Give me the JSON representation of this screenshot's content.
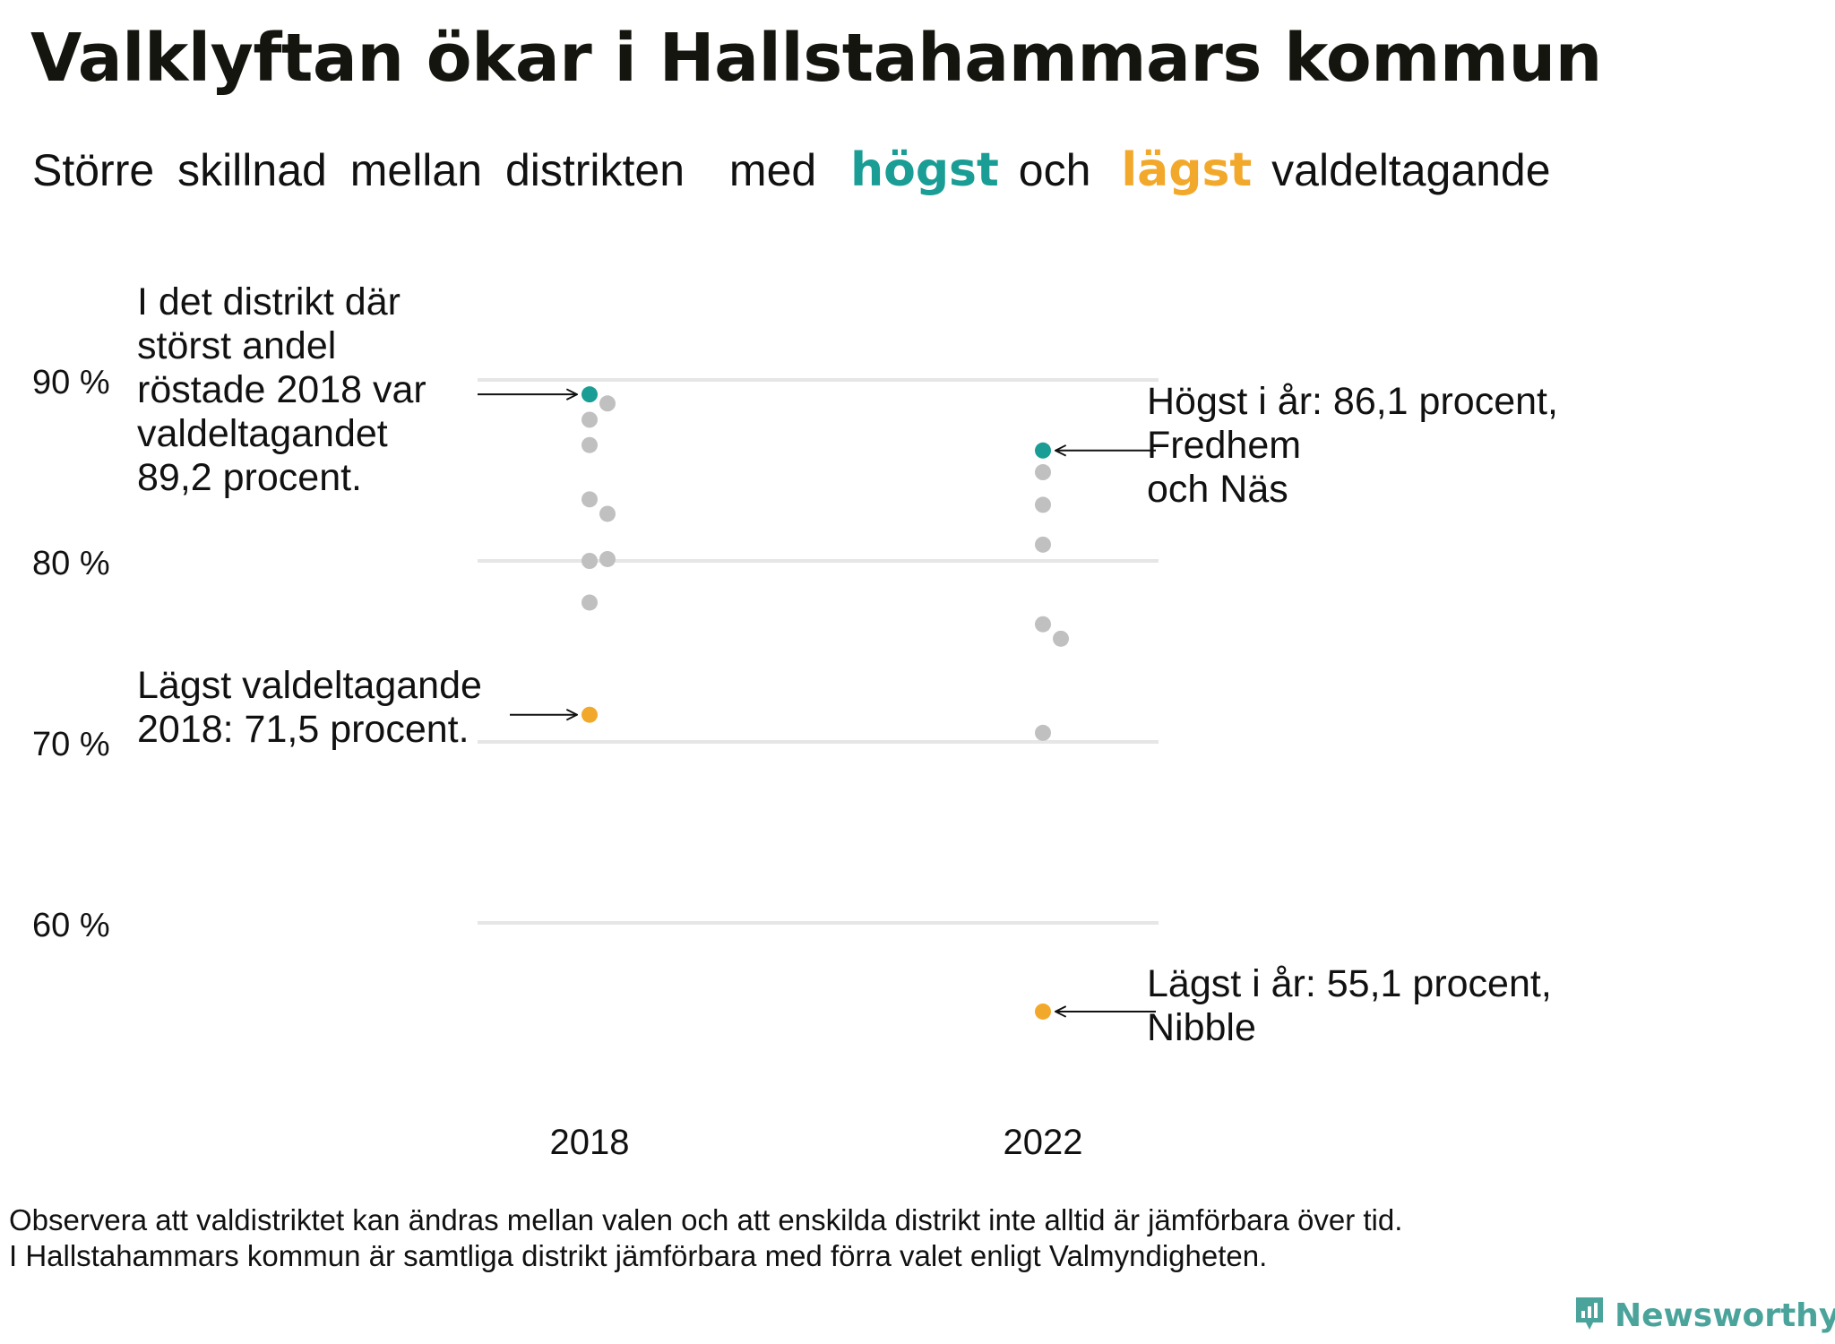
{
  "title": "Valklyftan ökar i Hallstahammars kommun",
  "subtitle": {
    "words_before": [
      "Större",
      "skillnad",
      "mellan",
      "distrikten",
      "med"
    ],
    "highest_word": "högst",
    "and_word": "och",
    "lowest_word": "lägst",
    "words_after": [
      "valdeltagande"
    ]
  },
  "colors": {
    "highest": "#1a9d95",
    "lowest": "#f2a92b",
    "other": "#c0c0c0",
    "grid": "#e6e6e6"
  },
  "annotations": {
    "max_2018": "I det distrikt där\nstörst andel\nröstade 2018 var\nvaldeltagandet\n89,2 procent.",
    "min_2018": "Lägst valdeltagande\n2018: 71,5 procent.",
    "max_2022": "Högst i år: 86,1 procent,\nFredhem\noch Näs",
    "min_2022": "Lägst i år: 55,1 procent,\nNibble"
  },
  "footnote": {
    "line1": "Observera att valdistriktet kan ändras mellan valen och att enskilda distrikt inte alltid är jämförbara över tid.",
    "line2": "I Hallstahammars kommun är samtliga distrikt jämförbara med förra valet enligt Valmyndigheten."
  },
  "brand": {
    "name": "Newsworthy",
    "icon": "newsworthy-logo-icon"
  },
  "chart_data": {
    "type": "scatter",
    "categories": [
      "2018",
      "2022"
    ],
    "y_ticks": [
      60,
      70,
      80,
      90
    ],
    "y_tick_labels": [
      "60 %",
      "70 %",
      "80 %",
      "90 %"
    ],
    "ylim": [
      53,
      93
    ],
    "grid": true,
    "series": [
      {
        "category": "2018",
        "values": [
          89.2,
          88.7,
          87.8,
          86.4,
          83.4,
          82.6,
          80.0,
          80.1,
          77.7,
          71.5
        ],
        "highest": 89.2,
        "lowest": 71.5
      },
      {
        "category": "2022",
        "values": [
          86.1,
          84.9,
          83.1,
          80.9,
          76.5,
          75.7,
          70.5,
          55.1
        ],
        "highest": 86.1,
        "lowest": 55.1
      }
    ]
  }
}
